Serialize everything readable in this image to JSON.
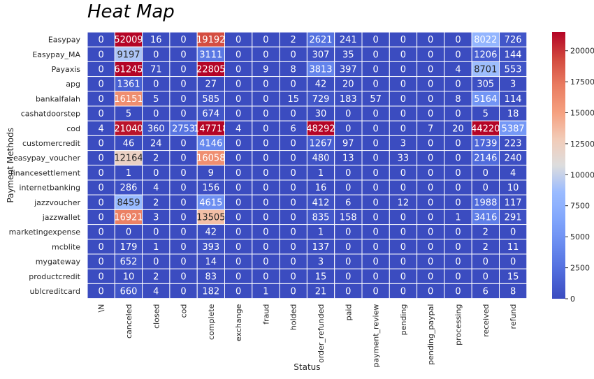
{
  "chart_data": {
    "type": "heatmap",
    "title": "Heat Map",
    "xlabel": "Status",
    "ylabel": "Payment Methods",
    "columns": [
      "\\N",
      "canceled",
      "closed",
      "cod",
      "complete",
      "exchange",
      "fraud",
      "holded",
      "order_refunded",
      "paid",
      "payment_review",
      "pending",
      "pending_paypal",
      "processing",
      "received",
      "refund"
    ],
    "rows": [
      "Easypay",
      "Easypay_MA",
      "Payaxis",
      "apg",
      "bankalfalah",
      "cashatdoorstep",
      "cod",
      "customercredit",
      "easypay_voucher",
      "financesettlement",
      "internetbanking",
      "jazzvoucher",
      "jazzwallet",
      "marketingexpense",
      "mcblite",
      "mygateway",
      "productcredit",
      "ublcreditcard"
    ],
    "values": [
      [
        0,
        52009,
        16,
        0,
        19192,
        0,
        0,
        2,
        2621,
        241,
        0,
        0,
        0,
        0,
        8022,
        726
      ],
      [
        0,
        9197,
        0,
        0,
        3111,
        0,
        0,
        0,
        307,
        35,
        0,
        0,
        0,
        0,
        1206,
        144
      ],
      [
        0,
        61245,
        71,
        0,
        22805,
        0,
        9,
        8,
        3813,
        397,
        0,
        0,
        0,
        4,
        8701,
        553
      ],
      [
        0,
        1361,
        0,
        0,
        27,
        0,
        0,
        0,
        42,
        20,
        0,
        0,
        0,
        0,
        305,
        3
      ],
      [
        0,
        16151,
        5,
        0,
        585,
        0,
        0,
        15,
        729,
        183,
        57,
        0,
        0,
        8,
        5164,
        114
      ],
      [
        0,
        5,
        0,
        0,
        674,
        0,
        0,
        0,
        30,
        0,
        0,
        0,
        0,
        0,
        5,
        18
      ],
      [
        4,
        21040,
        360,
        2753,
        147718,
        4,
        0,
        6,
        48292,
        0,
        0,
        0,
        7,
        20,
        44220,
        5387
      ],
      [
        0,
        46,
        24,
        0,
        4146,
        0,
        0,
        0,
        1267,
        97,
        0,
        3,
        0,
        0,
        1739,
        223
      ],
      [
        0,
        12164,
        2,
        0,
        16058,
        0,
        0,
        0,
        480,
        13,
        0,
        33,
        0,
        0,
        2146,
        240
      ],
      [
        0,
        1,
        0,
        0,
        9,
        0,
        0,
        0,
        1,
        0,
        0,
        0,
        0,
        0,
        0,
        4
      ],
      [
        0,
        286,
        4,
        0,
        156,
        0,
        0,
        0,
        16,
        0,
        0,
        0,
        0,
        0,
        0,
        10
      ],
      [
        0,
        8459,
        2,
        0,
        4615,
        0,
        0,
        0,
        412,
        6,
        0,
        12,
        0,
        0,
        1988,
        117
      ],
      [
        0,
        16921,
        3,
        0,
        13505,
        0,
        0,
        0,
        835,
        158,
        0,
        0,
        0,
        1,
        3416,
        291
      ],
      [
        0,
        0,
        0,
        0,
        42,
        0,
        0,
        0,
        1,
        0,
        0,
        0,
        0,
        0,
        2,
        0
      ],
      [
        0,
        179,
        1,
        0,
        393,
        0,
        0,
        0,
        137,
        0,
        0,
        0,
        0,
        0,
        2,
        11
      ],
      [
        0,
        652,
        0,
        0,
        14,
        0,
        0,
        0,
        3,
        0,
        0,
        0,
        0,
        0,
        0,
        0
      ],
      [
        0,
        10,
        2,
        0,
        83,
        0,
        0,
        0,
        15,
        0,
        0,
        0,
        0,
        0,
        0,
        15
      ],
      [
        0,
        660,
        4,
        0,
        182,
        0,
        1,
        0,
        21,
        0,
        0,
        0,
        0,
        0,
        6,
        8
      ]
    ],
    "colorbar": {
      "vmin": 0,
      "vmax": 21500,
      "ticks": [
        0,
        2500,
        5000,
        7500,
        10000,
        12500,
        15000,
        17500,
        20000
      ]
    },
    "colormap": "coolwarm"
  }
}
